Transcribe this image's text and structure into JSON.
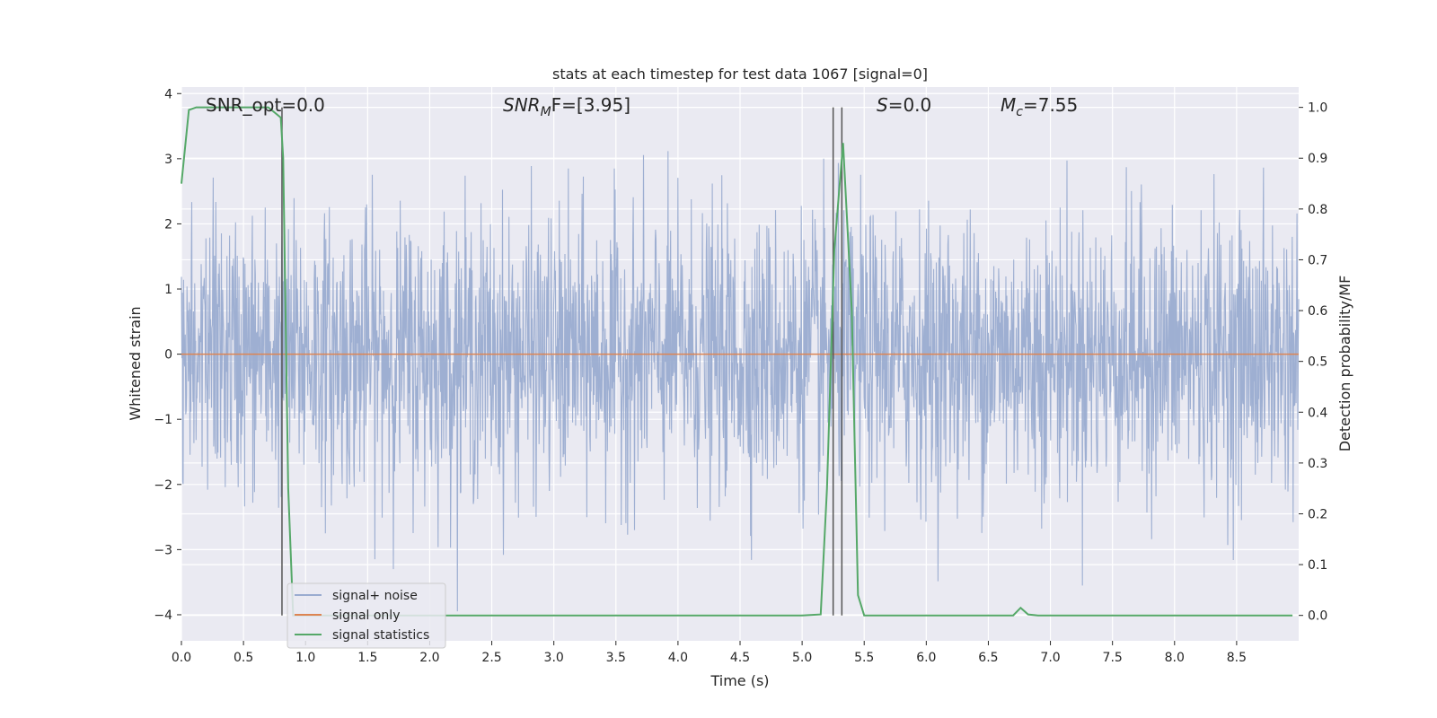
{
  "chart_data": {
    "type": "line",
    "title": "stats at each timestep for test data 1067 [signal=0]",
    "xlabel": "Time (s)",
    "ylabel_left": "Whitened strain",
    "ylabel_right": "Detection probability/MF",
    "xlim": [
      0.0,
      9.0
    ],
    "ylim_left": [
      -4.4,
      4.1
    ],
    "ylim_right": [
      -0.05,
      1.04
    ],
    "grid": true,
    "legend_position": "lower-left",
    "x_ticks": [
      0.0,
      0.5,
      1.0,
      1.5,
      2.0,
      2.5,
      3.0,
      3.5,
      4.0,
      4.5,
      5.0,
      5.5,
      6.0,
      6.5,
      7.0,
      7.5,
      8.0,
      8.5
    ],
    "x_tick_labels": [
      "0.0",
      "0.5",
      "1.0",
      "1.5",
      "2.0",
      "2.5",
      "3.0",
      "3.5",
      "4.0",
      "4.5",
      "5.0",
      "5.5",
      "6.0",
      "6.5",
      "7.0",
      "7.5",
      "8.0",
      "8.5"
    ],
    "y_left_ticks": [
      4,
      3,
      2,
      1,
      0,
      -1,
      -2,
      -3,
      -4
    ],
    "y_left_tick_labels": [
      "4",
      "3",
      "2",
      "1",
      "0",
      "−1",
      "−2",
      "−3",
      "−4"
    ],
    "y_right_ticks": [
      1.0,
      0.9,
      0.8,
      0.7,
      0.6,
      0.5,
      0.4,
      0.3,
      0.2,
      0.1,
      0.0
    ],
    "y_right_tick_labels": [
      "1.0",
      "0.9",
      "0.8",
      "0.7",
      "0.6",
      "0.5",
      "0.4",
      "0.3",
      "0.2",
      "0.1",
      "0.0"
    ],
    "annotations": {
      "snr_opt": "SNR_opt=0.0",
      "snr_mf_main": "SNR",
      "snr_mf_sub": "M",
      "snr_mf_rest": "F=[3.95]",
      "s_main": "S",
      "s_rest": "=0.0",
      "mc_main": "M",
      "mc_sub": "c",
      "mc_rest": "=7.55"
    },
    "vertical_lines_x": [
      0.81,
      5.25,
      5.32
    ],
    "series": [
      {
        "name": "signal+ noise",
        "color": "#9aacd0",
        "axis": "left",
        "kind": "noise",
        "x_range": [
          0.0,
          9.0
        ],
        "approx_range": [
          -4.0,
          3.7
        ]
      },
      {
        "name": "signal only",
        "color": "#dd8452",
        "axis": "left",
        "x": [
          0.0,
          9.0
        ],
        "y": [
          0.0,
          0.0
        ]
      },
      {
        "name": "signal statistics",
        "color": "#55a868",
        "axis": "right",
        "x": [
          0.0,
          0.06,
          0.12,
          0.2,
          0.3,
          0.5,
          0.7,
          0.8,
          0.82,
          0.86,
          0.9,
          1.0,
          2.0,
          3.0,
          4.0,
          5.0,
          5.15,
          5.2,
          5.26,
          5.33,
          5.4,
          5.45,
          5.5,
          5.6,
          6.0,
          6.5,
          6.7,
          6.76,
          6.82,
          6.9,
          7.5,
          8.0,
          8.5,
          8.95
        ],
        "y": [
          0.85,
          0.995,
          1.0,
          1.0,
          1.0,
          1.0,
          1.0,
          0.98,
          0.9,
          0.25,
          0.0,
          0.0,
          0.0,
          0.0,
          0.0,
          0.0,
          0.002,
          0.25,
          0.72,
          0.93,
          0.6,
          0.04,
          0.0,
          0.0,
          0.0,
          0.0,
          0.0,
          0.015,
          0.002,
          0.0,
          0.0,
          0.0,
          0.0,
          0.0
        ]
      }
    ]
  }
}
